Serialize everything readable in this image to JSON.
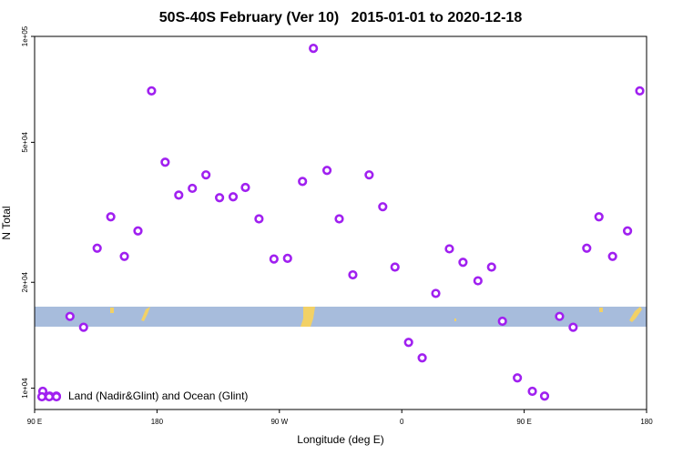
{
  "chart_data": {
    "type": "scatter",
    "title": "50S-40S February (Ver 10)   2015-01-01 to 2020-12-18",
    "x_label": "Longitude (deg E)",
    "y_label": "N Total",
    "xlim": [
      90,
      540
    ],
    "xticks": [
      {
        "value": 90,
        "label": "90 E"
      },
      180,
      {
        "value": 270,
        "label": "90 W"
      },
      {
        "value": 360,
        "label": "0"
      },
      {
        "value": 450,
        "label": "90 E"
      },
      {
        "value": 540,
        "label": "180"
      }
    ],
    "ylim": [
      8700,
      100000
    ],
    "log_y": true,
    "yticks": [
      {
        "value": 10000,
        "label": "1e+04"
      },
      {
        "value": 20000,
        "label": "2e+04"
      },
      {
        "value": 50000,
        "label": "5e+04"
      },
      {
        "value": 100000,
        "label": "1e+05"
      }
    ],
    "legend": "lower left",
    "series": [
      {
        "name": "Land (Nadir&Glint) and Ocean (Glint)",
        "color": "#a020f0",
        "x": [
          96,
          101,
          106,
          116,
          126,
          136,
          146,
          156,
          166,
          176,
          186,
          196,
          206,
          216,
          226,
          236,
          245,
          255,
          266,
          276,
          287,
          295,
          305,
          314,
          324,
          336,
          346,
          355,
          365,
          375,
          385,
          395,
          405,
          416,
          426,
          434,
          445,
          456,
          465,
          476,
          486,
          496,
          505,
          515,
          526,
          535
        ],
        "values": [
          9800,
          9500,
          9500,
          16000,
          14900,
          25000,
          30700,
          23700,
          28000,
          70000,
          43900,
          35400,
          37000,
          40400,
          34800,
          35000,
          37200,
          30300,
          23300,
          23400,
          38700,
          92500,
          41600,
          30300,
          21000,
          40400,
          32800,
          22100,
          13500,
          12200,
          18600,
          24900,
          22800,
          20200,
          22100,
          15500,
          10700,
          9800,
          9500,
          16000,
          14900,
          25000,
          30700,
          23700,
          28000,
          70000
        ]
      }
    ]
  }
}
